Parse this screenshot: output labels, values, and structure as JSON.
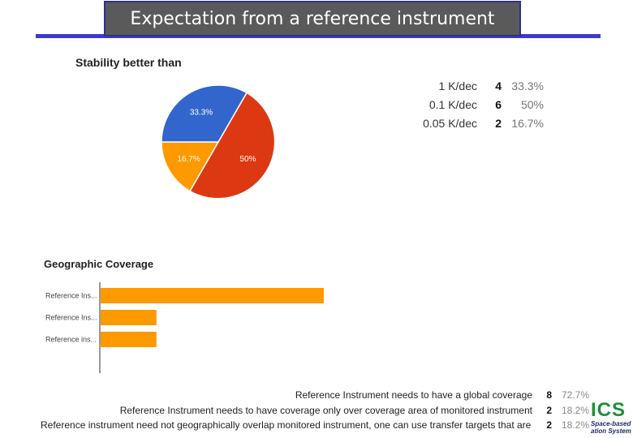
{
  "slide": {
    "title": "Expectation from a reference instrument"
  },
  "colors": {
    "title_bg": "#5a5a5a",
    "title_rule": "#3a3acf",
    "red": "#dc3912",
    "orange": "#ff9900",
    "blue": "#3366cc",
    "logo_green": "#1f8f3a",
    "logo_navy": "#1d2c6b"
  },
  "stability": {
    "title": "Stability better than",
    "rows": [
      {
        "label": "1 K/dec",
        "count": "4",
        "pct": "33.3%"
      },
      {
        "label": "0.1 K/dec",
        "count": "6",
        "pct": "50%"
      },
      {
        "label": "0.05 K/dec",
        "count": "2",
        "pct": "16.7%"
      }
    ]
  },
  "geographic": {
    "title": "Geographic Coverage",
    "rows": [
      {
        "label": "Reference Instrument needs to have a global coverage",
        "count": "8",
        "pct": "72.7%"
      },
      {
        "label": "Reference Instrument needs to have coverage only over coverage area of monitored instrument",
        "count": "2",
        "pct": "18.2%"
      },
      {
        "label": "Reference instrument need not geographically overlap monitored instrument, one can use transfer targets that are stable",
        "count": "2",
        "pct": "18.2%"
      }
    ]
  },
  "chart_data": [
    {
      "type": "pie",
      "title": "Stability better than",
      "slices": [
        {
          "label": "0.1 K/dec",
          "value": 6,
          "pct_label": "50%",
          "color": "#dc3912"
        },
        {
          "label": "0.05 K/dec",
          "value": 2,
          "pct_label": "16.7%",
          "color": "#ff9900"
        },
        {
          "label": "1 K/dec",
          "value": 4,
          "pct_label": "33.3%",
          "color": "#3366cc"
        }
      ]
    },
    {
      "type": "bar",
      "orientation": "horizontal",
      "title": "Geographic Coverage",
      "categories": [
        "Reference Ins...",
        "Reference Ins...",
        "Reference ins..."
      ],
      "values": [
        8,
        2,
        2
      ],
      "color": "#ff9900"
    }
  ],
  "logo": {
    "mark": "ICS",
    "line1": "Space-based",
    "line2": "ation System"
  }
}
